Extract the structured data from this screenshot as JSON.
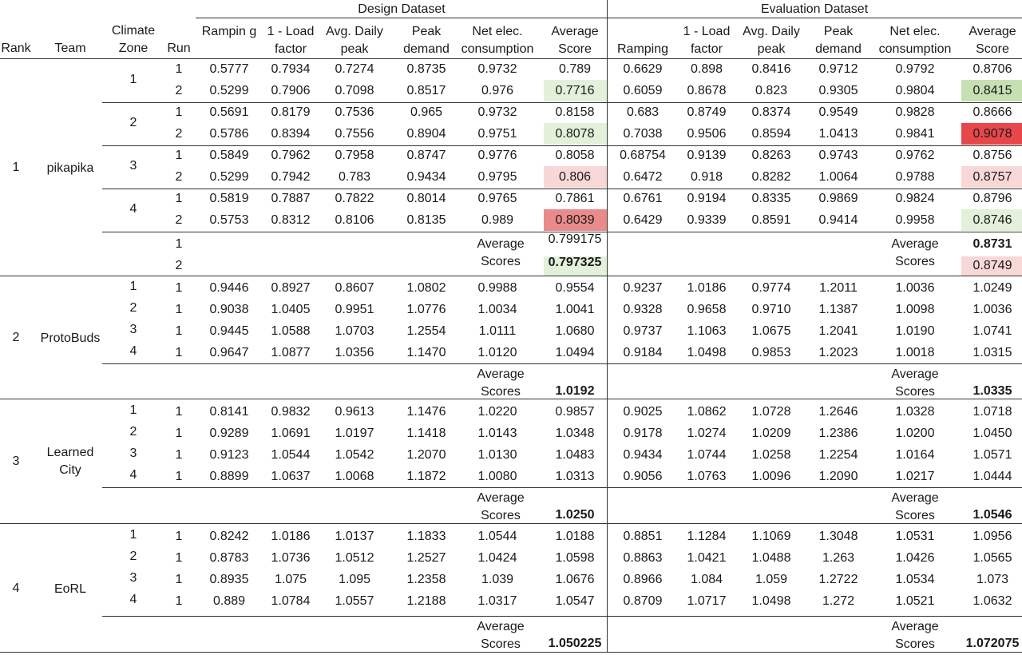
{
  "colors": {
    "green_light": "#e3f0da",
    "green_mid": "#c6e0b4",
    "pink_light": "#f8d7d7",
    "red_mid": "#ea8b8b",
    "red_strong": "#e8474a"
  },
  "chart_data": {
    "type": "table",
    "group_headers": [
      "Design Dataset",
      "Evaluation Dataset"
    ],
    "headers": {
      "rank": "Rank",
      "team": "Team",
      "zone": "Climate Zone",
      "run": "Run",
      "design": [
        "Rampin g",
        "1 - Load factor",
        "Avg. Daily peak",
        "Peak demand",
        "Net elec. consumption",
        "Average Score"
      ],
      "eval": [
        "Ramping",
        "1 - Load factor",
        "Avg. Daily peak",
        "Peak demand",
        "Net elec. consumption",
        "Average Score"
      ]
    },
    "avg_label": "Average Scores",
    "teams": [
      {
        "rank": "1",
        "name": "pikapika",
        "rows": [
          {
            "zone": "1",
            "run": "1",
            "design": [
              "0.5777",
              "0.7934",
              "0.7274",
              "0.8735",
              "0.9732",
              "0.789"
            ],
            "eval": [
              "0.6629",
              "0.898",
              "0.8416",
              "0.9712",
              "0.9792",
              "0.8706"
            ]
          },
          {
            "zone": "",
            "run": "2",
            "design": [
              "0.5299",
              "0.7906",
              "0.7098",
              "0.8517",
              "0.976",
              "0.7716"
            ],
            "eval": [
              "0.6059",
              "0.8678",
              "0.823",
              "0.9305",
              "0.9804",
              "0.8415"
            ]
          },
          {
            "zone": "2",
            "run": "1",
            "design": [
              "0.5691",
              "0.8179",
              "0.7536",
              "0.965",
              "0.9732",
              "0.8158"
            ],
            "eval": [
              "0.683",
              "0.8749",
              "0.8374",
              "0.9549",
              "0.9828",
              "0.8666"
            ]
          },
          {
            "zone": "",
            "run": "2",
            "design": [
              "0.5786",
              "0.8394",
              "0.7556",
              "0.8904",
              "0.9751",
              "0.8078"
            ],
            "eval": [
              "0.7038",
              "0.9506",
              "0.8594",
              "1.0413",
              "0.9841",
              "0.9078"
            ]
          },
          {
            "zone": "3",
            "run": "1",
            "design": [
              "0.5849",
              "0.7962",
              "0.7958",
              "0.8747",
              "0.9776",
              "0.8058"
            ],
            "eval": [
              "0.68754",
              "0.9139",
              "0.8263",
              "0.9743",
              "0.9762",
              "0.8756"
            ]
          },
          {
            "zone": "",
            "run": "2",
            "design": [
              "0.5299",
              "0.7942",
              "0.783",
              "0.9434",
              "0.9795",
              "0.806"
            ],
            "eval": [
              "0.6472",
              "0.918",
              "0.8282",
              "1.0064",
              "0.9788",
              "0.8757"
            ]
          },
          {
            "zone": "4",
            "run": "1",
            "design": [
              "0.5819",
              "0.7887",
              "0.7822",
              "0.8014",
              "0.9765",
              "0.7861"
            ],
            "eval": [
              "0.6761",
              "0.9194",
              "0.8335",
              "0.9869",
              "0.9824",
              "0.8796"
            ]
          },
          {
            "zone": "",
            "run": "2",
            "design": [
              "0.5753",
              "0.8312",
              "0.8106",
              "0.8135",
              "0.989",
              "0.8039"
            ],
            "eval": [
              "0.6429",
              "0.9339",
              "0.8591",
              "0.9414",
              "0.9958",
              "0.8746"
            ]
          }
        ],
        "avg_runs": [
          "1",
          "2"
        ],
        "avg_design": [
          "0.799175",
          "0.797325"
        ],
        "avg_eval": [
          "0.8731",
          "0.8749"
        ]
      },
      {
        "rank": "2",
        "name": "ProtoBuds",
        "rows": [
          {
            "zone": "1",
            "run": "1",
            "design": [
              "0.9446",
              "0.8927",
              "0.8607",
              "1.0802",
              "0.9988",
              "0.9554"
            ],
            "eval": [
              "0.9237",
              "1.0186",
              "0.9774",
              "1.2011",
              "1.0036",
              "1.0249"
            ]
          },
          {
            "zone": "2",
            "run": "1",
            "design": [
              "0.9038",
              "1.0405",
              "0.9951",
              "1.0776",
              "1.0034",
              "1.0041"
            ],
            "eval": [
              "0.9328",
              "0.9658",
              "0.9710",
              "1.1387",
              "1.0098",
              "1.0036"
            ]
          },
          {
            "zone": "3",
            "run": "1",
            "design": [
              "0.9445",
              "1.0588",
              "1.0703",
              "1.2554",
              "1.0111",
              "1.0680"
            ],
            "eval": [
              "0.9737",
              "1.1063",
              "1.0675",
              "1.2041",
              "1.0190",
              "1.0741"
            ]
          },
          {
            "zone": "4",
            "run": "1",
            "design": [
              "0.9647",
              "1.0877",
              "1.0356",
              "1.1470",
              "1.0120",
              "1.0494"
            ],
            "eval": [
              "0.9184",
              "1.0498",
              "0.9853",
              "1.2023",
              "1.0018",
              "1.0315"
            ]
          }
        ],
        "avg_design": "1.0192",
        "avg_eval": "1.0335"
      },
      {
        "rank": "3",
        "name": "Learned City",
        "rows": [
          {
            "zone": "1",
            "run": "1",
            "design": [
              "0.8141",
              "0.9832",
              "0.9613",
              "1.1476",
              "1.0220",
              "0.9857"
            ],
            "eval": [
              "0.9025",
              "1.0862",
              "1.0728",
              "1.2646",
              "1.0328",
              "1.0718"
            ]
          },
          {
            "zone": "2",
            "run": "1",
            "design": [
              "0.9289",
              "1.0691",
              "1.0197",
              "1.1418",
              "1.0143",
              "1.0348"
            ],
            "eval": [
              "0.9178",
              "1.0274",
              "1.0209",
              "1.2386",
              "1.0200",
              "1.0450"
            ]
          },
          {
            "zone": "3",
            "run": "1",
            "design": [
              "0.9123",
              "1.0544",
              "1.0542",
              "1.2070",
              "1.0130",
              "1.0483"
            ],
            "eval": [
              "0.9434",
              "1.0744",
              "1.0258",
              "1.2254",
              "1.0164",
              "1.0571"
            ]
          },
          {
            "zone": "4",
            "run": "1",
            "design": [
              "0.8899",
              "1.0637",
              "1.0068",
              "1.1872",
              "1.0080",
              "1.0313"
            ],
            "eval": [
              "0.9056",
              "1.0763",
              "1.0096",
              "1.2090",
              "1.0217",
              "1.0444"
            ]
          }
        ],
        "avg_design": "1.0250",
        "avg_eval": "1.0546"
      },
      {
        "rank": "4",
        "name": "EoRL",
        "rows": [
          {
            "zone": "1",
            "run": "1",
            "design": [
              "0.8242",
              "1.0186",
              "1.0137",
              "1.1833",
              "1.0544",
              "1.0188"
            ],
            "eval": [
              "0.8851",
              "1.1284",
              "1.1069",
              "1.3048",
              "1.0531",
              "1.0956"
            ]
          },
          {
            "zone": "2",
            "run": "1",
            "design": [
              "0.8783",
              "1.0736",
              "1.0512",
              "1.2527",
              "1.0424",
              "1.0598"
            ],
            "eval": [
              "0.8863",
              "1.0421",
              "1.0488",
              "1.263",
              "1.0426",
              "1.0565"
            ]
          },
          {
            "zone": "3",
            "run": "1",
            "design": [
              "0.8935",
              "1.075",
              "1.095",
              "1.2358",
              "1.039",
              "1.0676"
            ],
            "eval": [
              "0.8966",
              "1.084",
              "1.059",
              "1.2722",
              "1.0534",
              "1.073"
            ]
          },
          {
            "zone": "4",
            "run": "1",
            "design": [
              "0.889",
              "1.0784",
              "1.0557",
              "1.2188",
              "1.0317",
              "1.0547"
            ],
            "eval": [
              "0.8709",
              "1.0717",
              "1.0498",
              "1.272",
              "1.0521",
              "1.0632"
            ]
          }
        ],
        "avg_design": "1.050225",
        "avg_eval": "1.072075"
      }
    ],
    "highlights": [
      {
        "team": 0,
        "row": 1,
        "side": "design",
        "color": "green_light"
      },
      {
        "team": 0,
        "row": 3,
        "side": "design",
        "color": "green_light"
      },
      {
        "team": 0,
        "row": 5,
        "side": "design",
        "color": "pink_light"
      },
      {
        "team": 0,
        "row": 7,
        "side": "design",
        "color": "red_mid"
      },
      {
        "team": 0,
        "row": 1,
        "side": "eval",
        "color": "green_mid"
      },
      {
        "team": 0,
        "row": 3,
        "side": "eval",
        "color": "red_strong"
      },
      {
        "team": 0,
        "row": 5,
        "side": "eval",
        "color": "pink_light"
      },
      {
        "team": 0,
        "row": 7,
        "side": "eval",
        "color": "green_light"
      },
      {
        "team": 0,
        "row": "avg2",
        "side": "design",
        "color": "green_light"
      },
      {
        "team": 0,
        "row": "avg2",
        "side": "eval",
        "color": "pink_light"
      }
    ],
    "bold_averages": [
      {
        "team": 0,
        "side": "design",
        "index": 1
      },
      {
        "team": 0,
        "side": "eval",
        "index": 0
      },
      {
        "team": 1,
        "side": "design"
      },
      {
        "team": 1,
        "side": "eval"
      },
      {
        "team": 2,
        "side": "design"
      },
      {
        "team": 2,
        "side": "eval"
      },
      {
        "team": 3,
        "side": "design"
      },
      {
        "team": 3,
        "side": "eval"
      }
    ]
  }
}
